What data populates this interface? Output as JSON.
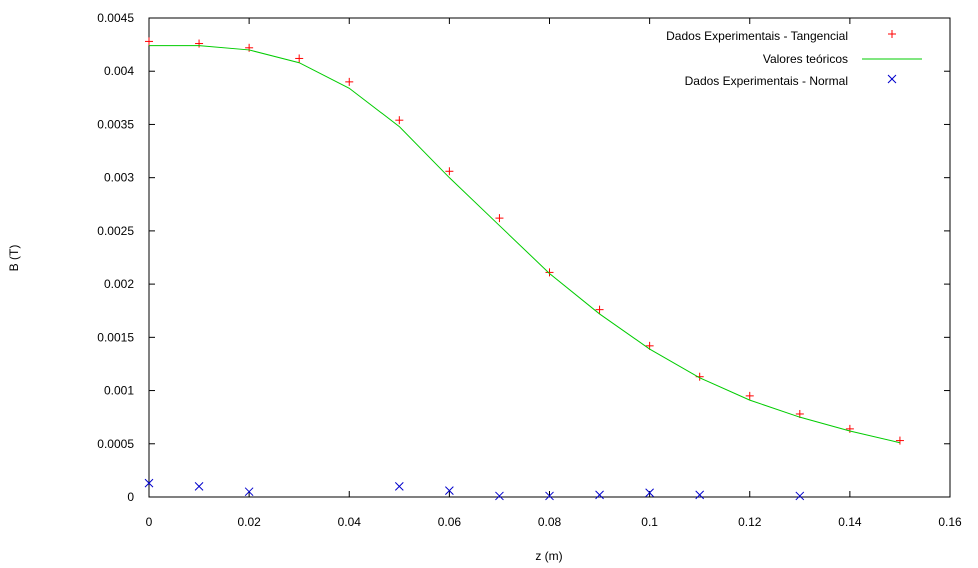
{
  "chart_data": {
    "type": "scatter",
    "title": "",
    "xlabel": "z (m)",
    "ylabel": "B (T)",
    "xlim": [
      0,
      0.16
    ],
    "ylim": [
      0,
      0.0045
    ],
    "x_ticks": [
      "0",
      "0.02",
      "0.04",
      "0.06",
      "0.08",
      "0.1",
      "0.12",
      "0.14",
      "0.16"
    ],
    "y_ticks": [
      "0",
      "0.0005",
      "0.001",
      "0.0015",
      "0.002",
      "0.0025",
      "0.003",
      "0.0035",
      "0.004",
      "0.0045"
    ],
    "grid": false,
    "legend_position": "top-right",
    "series": [
      {
        "name": "Dados Experimentais - Tangencial",
        "kind": "points",
        "marker": "plus",
        "color": "#ff0000",
        "x": [
          0,
          0.01,
          0.02,
          0.03,
          0.04,
          0.05,
          0.06,
          0.07,
          0.08,
          0.09,
          0.1,
          0.11,
          0.12,
          0.13,
          0.14,
          0.15
        ],
        "y": [
          0.00428,
          0.00426,
          0.00422,
          0.00412,
          0.0039,
          0.00354,
          0.00306,
          0.00262,
          0.00211,
          0.00176,
          0.00142,
          0.00113,
          0.00095,
          0.00078,
          0.00064,
          0.00053
        ]
      },
      {
        "name": "Valores teóricos",
        "kind": "line",
        "color": "#00cc00",
        "x": [
          0,
          0.01,
          0.02,
          0.03,
          0.04,
          0.05,
          0.06,
          0.07,
          0.08,
          0.09,
          0.1,
          0.11,
          0.12,
          0.13,
          0.14,
          0.15
        ],
        "y": [
          0.00424,
          0.00424,
          0.0042,
          0.00408,
          0.00384,
          0.00348,
          0.003,
          0.00255,
          0.0021,
          0.00172,
          0.00139,
          0.00112,
          0.00091,
          0.00075,
          0.00062,
          0.00051
        ]
      },
      {
        "name": "Dados Experimentais - Normal",
        "kind": "points",
        "marker": "cross",
        "color": "#0000cc",
        "x": [
          0,
          0.01,
          0.02,
          0.05,
          0.06,
          0.07,
          0.08,
          0.09,
          0.1,
          0.11,
          0.13
        ],
        "y": [
          0.00013,
          0.0001,
          5e-05,
          0.0001,
          6e-05,
          1e-05,
          1e-05,
          2e-05,
          4e-05,
          2e-05,
          1e-05
        ]
      }
    ]
  }
}
